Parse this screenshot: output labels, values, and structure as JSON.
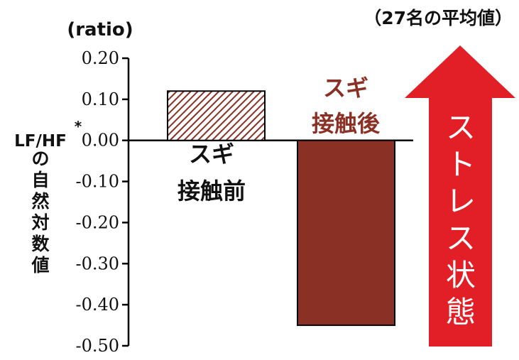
{
  "colors": {
    "accent_red": "#e21f26",
    "bar_dark": "#8a3024",
    "hatch": "#8a3024",
    "axis": "#000000",
    "text_dark": "#111111"
  },
  "annotation_top_right": "（27名の平均値）",
  "unit_label": "(ratio)",
  "ylabel_main": "LF/HF",
  "ylabel_star": "*",
  "ylabel_rest": [
    "の",
    "自",
    "然",
    "対",
    "数",
    "値"
  ],
  "arrow": {
    "chars": [
      "ス",
      "ト",
      "レ",
      "ス",
      "状",
      "態"
    ]
  },
  "chart_data": {
    "type": "bar",
    "categories": [
      "スギ接触前",
      "スギ接触後"
    ],
    "category_lines": [
      [
        "スギ",
        "接触前"
      ],
      [
        "スギ",
        "接触後"
      ]
    ],
    "values": [
      0.12,
      -0.45
    ],
    "bar_styles": [
      "hatched",
      "solid"
    ],
    "ylim": [
      -0.5,
      0.2
    ],
    "yticks": [
      "0.20",
      "0.10",
      "0.00",
      "-0.10",
      "-0.20",
      "-0.30",
      "-0.40",
      "-0.50"
    ],
    "ytick_values": [
      0.2,
      0.1,
      0.0,
      -0.1,
      -0.2,
      -0.3,
      -0.4,
      -0.5
    ]
  }
}
